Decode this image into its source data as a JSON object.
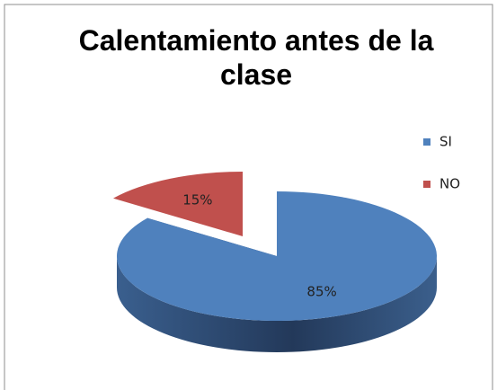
{
  "chart_data": {
    "type": "pie",
    "title": "Calentamiento antes de la clase",
    "categories": [
      "SI",
      "NO"
    ],
    "values": [
      85,
      15
    ],
    "value_labels": [
      "85%",
      "15%"
    ],
    "colors": [
      "#4f81bd",
      "#c0504d"
    ],
    "legend": "right"
  }
}
